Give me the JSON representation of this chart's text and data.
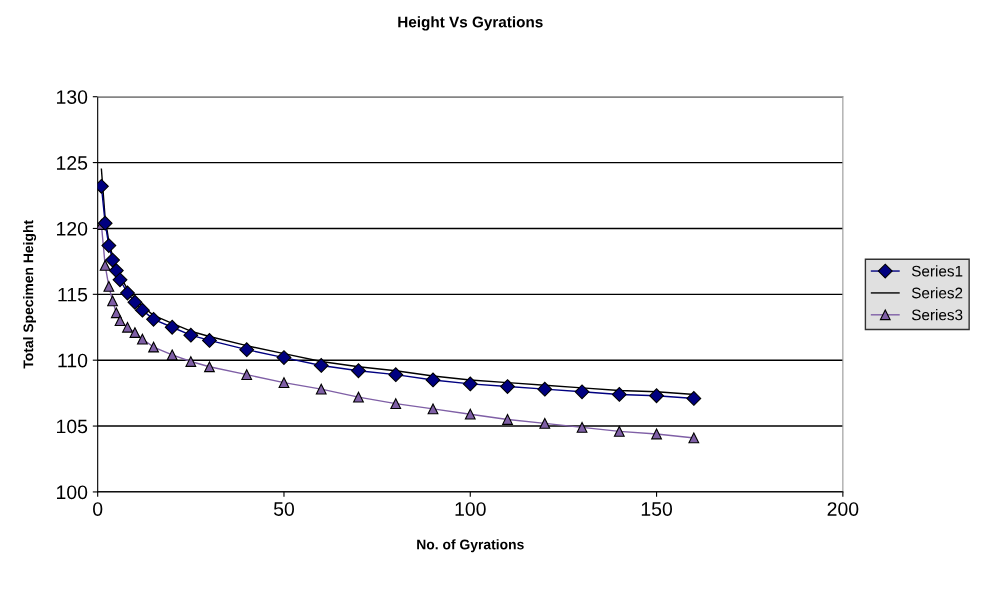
{
  "chart_data": {
    "type": "line",
    "title": "Height Vs Gyrations",
    "xlabel": "No. of Gyrations",
    "ylabel": "Total Specimen Height",
    "x": [
      1,
      2,
      3,
      4,
      5,
      6,
      8,
      10,
      12,
      15,
      20,
      25,
      30,
      40,
      50,
      60,
      70,
      80,
      90,
      100,
      110,
      120,
      130,
      140,
      150,
      160
    ],
    "series": [
      {
        "name": "Series1",
        "color": "#000080",
        "marker": "diamond",
        "values": [
          123.2,
          120.4,
          118.7,
          117.6,
          116.8,
          116.1,
          115.1,
          114.4,
          113.8,
          113.1,
          112.5,
          111.9,
          111.5,
          110.8,
          110.2,
          109.6,
          109.2,
          108.9,
          108.5,
          108.2,
          108.0,
          107.8,
          107.6,
          107.4,
          107.3,
          107.1
        ]
      },
      {
        "name": "Series2",
        "color": "#000000",
        "marker": "none",
        "values": [
          124.5,
          120.8,
          119.0,
          117.9,
          117.1,
          116.4,
          115.4,
          114.7,
          114.1,
          113.4,
          112.8,
          112.2,
          111.8,
          111.1,
          110.5,
          109.9,
          109.5,
          109.2,
          108.8,
          108.5,
          108.3,
          108.1,
          107.9,
          107.7,
          107.6,
          107.4
        ]
      },
      {
        "name": "Series3",
        "color": "#7f5fa6",
        "marker": "triangle",
        "values": [
          120.3,
          117.2,
          115.6,
          114.5,
          113.6,
          113.0,
          112.5,
          112.1,
          111.6,
          111.0,
          110.4,
          109.9,
          109.5,
          108.9,
          108.3,
          107.8,
          107.2,
          106.7,
          106.3,
          105.9,
          105.5,
          105.2,
          104.9,
          104.6,
          104.4,
          104.1
        ]
      }
    ],
    "xlim": [
      0,
      200
    ],
    "xticks": [
      0,
      50,
      100,
      150,
      200
    ],
    "ylim": [
      100,
      130
    ],
    "yticks": [
      100,
      105,
      110,
      115,
      120,
      125,
      130
    ],
    "grid": "y",
    "legend": "right"
  }
}
